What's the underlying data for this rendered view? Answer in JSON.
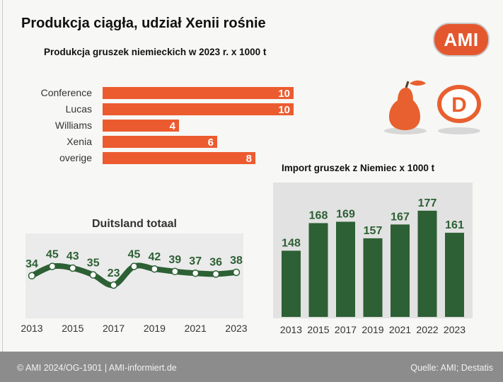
{
  "header": {
    "title": "Produkcja ciągła, udział Xenii rośnie",
    "logo_text": "AMI",
    "logo_color": "#e4572e"
  },
  "footer": {
    "left": "© AMI 2024/OG-1901 | AMI-informiert.de",
    "right": "Quelle: AMI; Destatis"
  },
  "icons": [
    "pear-icon",
    "country-code-d-icon"
  ],
  "country_code": "D",
  "colors": {
    "bar_orange": "#ec5b2f",
    "dark_green": "#2d6034",
    "import_panel": "#e2e2e2"
  },
  "chart_data": [
    {
      "type": "bar",
      "orientation": "horizontal",
      "title": "Produkcja gruszek niemieckich w 2023 r. x 1000 t",
      "categories": [
        "Conference",
        "Lucas",
        "Williams",
        "Xenia",
        "overige"
      ],
      "values": [
        10,
        10,
        4,
        6,
        8
      ]
    },
    {
      "type": "line",
      "title": "Duitsland totaal",
      "x": [
        2013,
        2014,
        2015,
        2016,
        2017,
        2018,
        2019,
        2020,
        2021,
        2022,
        2023
      ],
      "values": [
        34,
        45,
        43,
        35,
        23,
        45,
        42,
        39,
        37,
        36,
        38
      ],
      "x_tick_labels": [
        "2013",
        "2015",
        "2017",
        "2019",
        "2021",
        "2023"
      ],
      "ylim": [
        18,
        50
      ]
    },
    {
      "type": "bar",
      "title": "Import gruszek z Niemiec x 1000 t",
      "categories": [
        "2013",
        "2015",
        "2017",
        "2019",
        "2021",
        "2022",
        "2023"
      ],
      "values": [
        148,
        168,
        169,
        157,
        167,
        177,
        161
      ],
      "ylim": [
        0,
        185
      ]
    }
  ]
}
